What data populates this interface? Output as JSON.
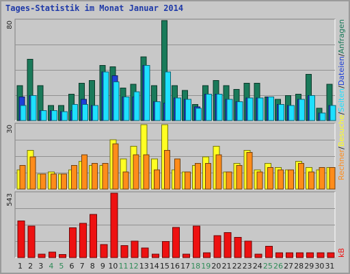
{
  "title": "Tages-Statistik im Monat Januar 2014",
  "colors": {
    "background": "#c8c8c8",
    "panel_border": "#ffffff",
    "grid": "#909090",
    "title": "#1f3aa8",
    "weekend_day": "#2e8b57",
    "weekday": "#202020",
    "anfragen": "#1a7a5a",
    "dateien": "#1e40d8",
    "seiten": "#1ee0ff",
    "besuche": "#ffff22",
    "rechner": "#ff8c1a",
    "kb": "#ee1111"
  },
  "chart_data": [
    {
      "type": "bar",
      "panel": "top",
      "ymax_label": "80",
      "ylim": [
        0,
        80
      ],
      "grid": true,
      "categories": [
        "1",
        "2",
        "3",
        "4",
        "5",
        "6",
        "7",
        "8",
        "9",
        "10",
        "11",
        "12",
        "13",
        "14",
        "15",
        "16",
        "17",
        "18",
        "19",
        "20",
        "21",
        "22",
        "23",
        "24",
        "25",
        "26",
        "27",
        "28",
        "29",
        "30",
        "31"
      ],
      "weekend": [
        "4",
        "5",
        "11",
        "12",
        "18",
        "19",
        "25",
        "26"
      ],
      "series": [
        {
          "name": "Anfragen",
          "color_key": "anfragen",
          "values": [
            28,
            49,
            28,
            12,
            12,
            21,
            30,
            32,
            44,
            43,
            26,
            29,
            51,
            28,
            80,
            28,
            24,
            13,
            28,
            32,
            28,
            25,
            30,
            30,
            19,
            17,
            20,
            21,
            37,
            10,
            29
          ]
        },
        {
          "name": "Dateien",
          "color_key": "dateien",
          "values": [
            19,
            20,
            8,
            8,
            7,
            8,
            17,
            12,
            39,
            36,
            19,
            19,
            44,
            15,
            14,
            18,
            17,
            11,
            21,
            21,
            17,
            15,
            18,
            18,
            19,
            13,
            12,
            17,
            20,
            6,
            12
          ]
        },
        {
          "name": "Seiten",
          "color_key": "seiten",
          "values": [
            12,
            20,
            8,
            8,
            7,
            13,
            13,
            12,
            39,
            31,
            19,
            23,
            44,
            15,
            39,
            18,
            17,
            10,
            21,
            21,
            17,
            15,
            18,
            18,
            19,
            13,
            12,
            17,
            20,
            6,
            12
          ]
        }
      ]
    },
    {
      "type": "bar",
      "panel": "middle",
      "ymax_label": "30",
      "ylim": [
        0,
        30
      ],
      "grid": true,
      "categories": [
        "1",
        "2",
        "3",
        "4",
        "5",
        "6",
        "7",
        "8",
        "9",
        "10",
        "11",
        "12",
        "13",
        "14",
        "15",
        "16",
        "17",
        "18",
        "19",
        "20",
        "21",
        "22",
        "23",
        "24",
        "25",
        "26",
        "27",
        "28",
        "29",
        "30",
        "31"
      ],
      "series": [
        {
          "name": "Besuche",
          "color_key": "besuche",
          "values": [
            9,
            18,
            7,
            8,
            7,
            9,
            13,
            11,
            11,
            23,
            14,
            20,
            30,
            14,
            30,
            9,
            8,
            11,
            15,
            20,
            8,
            12,
            18,
            9,
            12,
            10,
            9,
            13,
            10,
            9,
            10
          ]
        },
        {
          "name": "Rechner",
          "color_key": "rechner",
          "values": [
            11,
            15,
            7,
            7,
            7,
            11,
            16,
            12,
            12,
            21,
            8,
            16,
            16,
            9,
            18,
            14,
            8,
            12,
            12,
            16,
            8,
            11,
            17,
            8,
            10,
            9,
            9,
            12,
            8,
            10,
            10
          ]
        }
      ]
    },
    {
      "type": "bar",
      "panel": "bottom",
      "ymax_label": "543",
      "ylim": [
        0,
        543
      ],
      "grid": true,
      "categories": [
        "1",
        "2",
        "3",
        "4",
        "5",
        "6",
        "7",
        "8",
        "9",
        "10",
        "11",
        "12",
        "13",
        "14",
        "15",
        "16",
        "17",
        "18",
        "19",
        "20",
        "21",
        "22",
        "23",
        "24",
        "25",
        "26",
        "27",
        "28",
        "29",
        "30",
        "31"
      ],
      "series": [
        {
          "name": "kB",
          "color_key": "kb",
          "values": [
            310,
            265,
            30,
            45,
            25,
            250,
            290,
            365,
            110,
            543,
            100,
            140,
            80,
            30,
            135,
            255,
            30,
            265,
            40,
            185,
            210,
            170,
            140,
            30,
            95,
            40,
            40,
            40,
            40,
            40,
            40
          ]
        }
      ]
    }
  ],
  "legend": {
    "anfragen": "Anfragen",
    "sep1": "/",
    "dateien": "Dateien",
    "sep2": "/",
    "seiten": "Seiten",
    "sep3": "/",
    "besuche": "Besuche",
    "sep4": "/",
    "rechner": "Rechner",
    "kb": "kB"
  }
}
